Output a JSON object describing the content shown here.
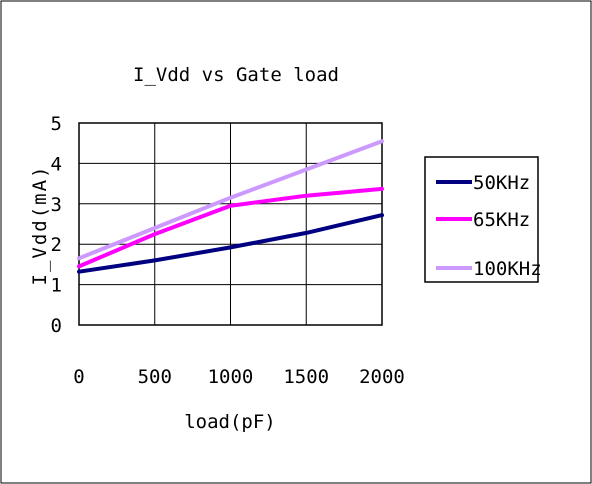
{
  "chart_data": {
    "type": "line",
    "title": "I_Vdd vs Gate load",
    "xlabel": "load(pF)",
    "ylabel": "I_Vdd(mA)",
    "x": [
      0,
      500,
      1000,
      1500,
      2000
    ],
    "xticks": [
      "0",
      "500",
      "1000",
      "1500",
      "2000"
    ],
    "yticks": [
      "0",
      "1",
      "2",
      "3",
      "4",
      "5"
    ],
    "xlim": [
      0,
      2000
    ],
    "ylim": [
      0,
      5
    ],
    "grid": true,
    "legend_position": "right",
    "series": [
      {
        "name": "50KHz",
        "color": "#000080",
        "values": [
          1.32,
          1.6,
          1.92,
          2.28,
          2.72
        ]
      },
      {
        "name": "65KHz",
        "color": "#ff00ff",
        "values": [
          1.45,
          2.25,
          2.95,
          3.2,
          3.37
        ]
      },
      {
        "name": "100KHz",
        "color": "#cc99ff",
        "values": [
          1.65,
          2.4,
          3.15,
          3.85,
          4.55
        ]
      }
    ]
  }
}
